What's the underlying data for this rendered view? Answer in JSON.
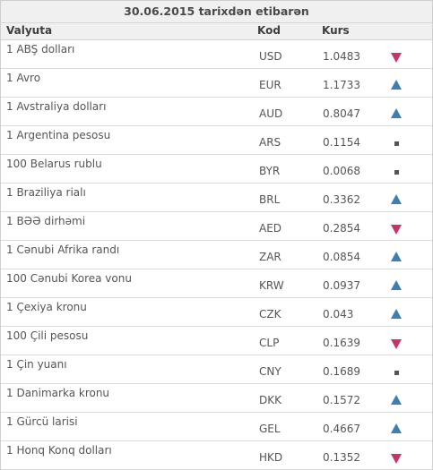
{
  "title": "30.06.2015 tarixdən etibarən",
  "columns": {
    "name": "Valyuta",
    "code": "Kod",
    "rate": "Kurs"
  },
  "colors": {
    "up": "#3a7fb8",
    "down": "#c8336a",
    "same": "#555555"
  },
  "rows": [
    {
      "name": "1 ABŞ dolları",
      "code": "USD",
      "rate": "1.0483",
      "trend": "down"
    },
    {
      "name": "1 Avro",
      "code": "EUR",
      "rate": "1.1733",
      "trend": "up"
    },
    {
      "name": "1 Avstraliya dolları",
      "code": "AUD",
      "rate": "0.8047",
      "trend": "up"
    },
    {
      "name": "1 Argentina pesosu",
      "code": "ARS",
      "rate": "0.1154",
      "trend": "same"
    },
    {
      "name": "100 Belarus rublu",
      "code": "BYR",
      "rate": "0.0068",
      "trend": "same"
    },
    {
      "name": "1 Braziliya rialı",
      "code": "BRL",
      "rate": "0.3362",
      "trend": "up"
    },
    {
      "name": "1 BƏƏ dirhəmi",
      "code": "AED",
      "rate": "0.2854",
      "trend": "down"
    },
    {
      "name": "1 Cənubi Afrika randı",
      "code": "ZAR",
      "rate": "0.0854",
      "trend": "up"
    },
    {
      "name": "100 Cənubi Korea vonu",
      "code": "KRW",
      "rate": "0.0937",
      "trend": "up"
    },
    {
      "name": "1 Çexiya kronu",
      "code": "CZK",
      "rate": "0.043",
      "trend": "up"
    },
    {
      "name": "100 Çili pesosu",
      "code": "CLP",
      "rate": "0.1639",
      "trend": "down"
    },
    {
      "name": "1 Çin yuanı",
      "code": "CNY",
      "rate": "0.1689",
      "trend": "same"
    },
    {
      "name": "1 Danimarka kronu",
      "code": "DKK",
      "rate": "0.1572",
      "trend": "up"
    },
    {
      "name": "1 Gürcü larisi",
      "code": "GEL",
      "rate": "0.4667",
      "trend": "up"
    },
    {
      "name": "1 Honq Konq dolları",
      "code": "HKD",
      "rate": "0.1352",
      "trend": "down"
    }
  ]
}
